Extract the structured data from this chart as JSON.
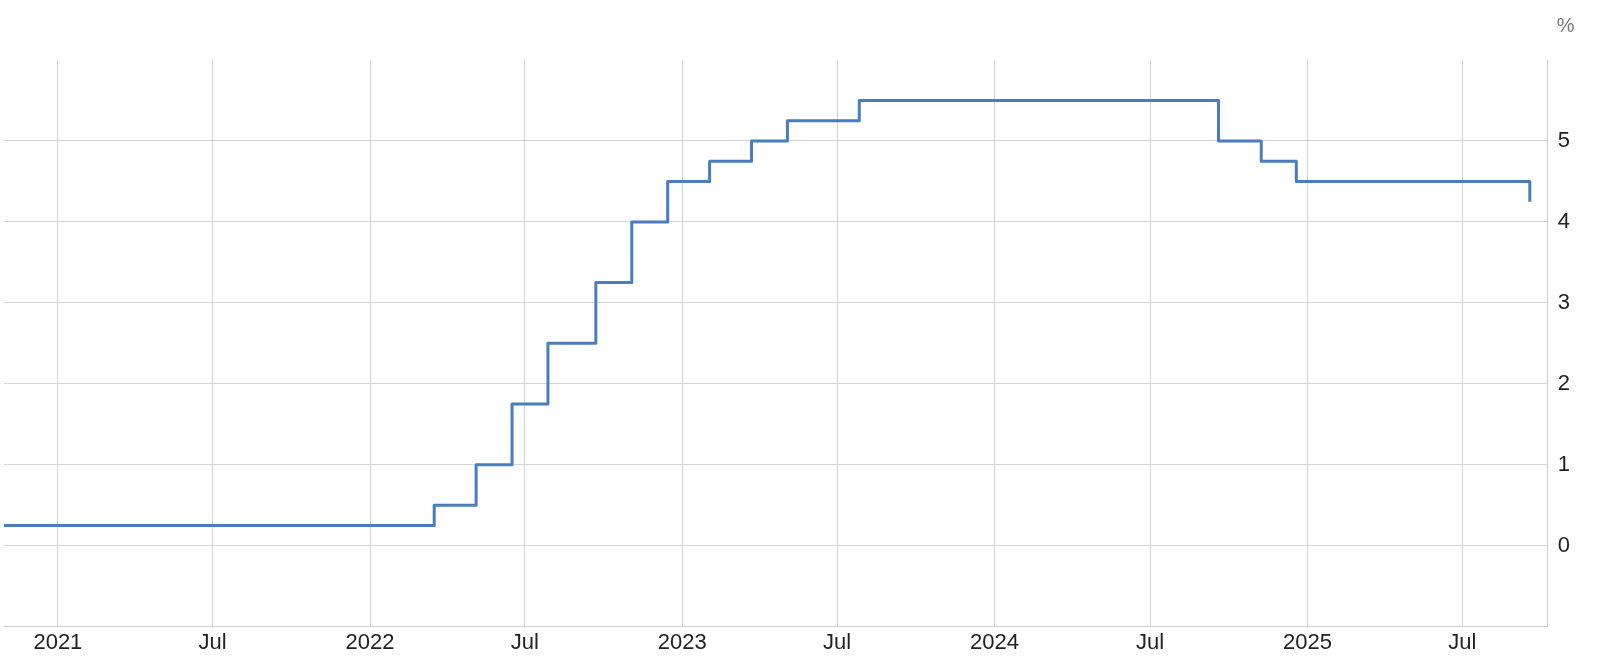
{
  "chart_data": {
    "type": "step",
    "ylabel": "%",
    "x": [
      "2020-10-30",
      "2022-03-17",
      "2022-05-05",
      "2022-06-16",
      "2022-07-28",
      "2022-09-22",
      "2022-11-03",
      "2022-12-15",
      "2023-02-02",
      "2023-03-23",
      "2023-05-04",
      "2023-07-27",
      "2024-09-19",
      "2024-11-08",
      "2024-12-19",
      "2025-09-18"
    ],
    "series": [
      {
        "color": "#4a7dc0",
        "values": [
          0.25,
          0.5,
          1.0,
          1.75,
          2.5,
          3.25,
          4.0,
          4.5,
          4.75,
          5.0,
          5.25,
          5.5,
          5.0,
          4.75,
          4.5,
          4.25
        ]
      }
    ],
    "xlim": [
      "2020-10-30",
      "2025-10-09"
    ],
    "xticks": [
      {
        "value": "2021-01-01",
        "label": "2021"
      },
      {
        "value": "2021-07-01",
        "label": "Jul"
      },
      {
        "value": "2022-01-01",
        "label": "2022"
      },
      {
        "value": "2022-07-01",
        "label": "Jul"
      },
      {
        "value": "2023-01-01",
        "label": "2023"
      },
      {
        "value": "2023-07-01",
        "label": "Jul"
      },
      {
        "value": "2024-01-01",
        "label": "2024"
      },
      {
        "value": "2024-07-01",
        "label": "Jul"
      },
      {
        "value": "2025-01-01",
        "label": "2025"
      },
      {
        "value": "2025-07-01",
        "label": "Jul"
      }
    ],
    "ylim": [
      -1,
      6
    ],
    "yticks": [
      0,
      1,
      2,
      3,
      4,
      5
    ],
    "grid": true,
    "legend": false,
    "marker": "none",
    "line_style": "solid"
  }
}
